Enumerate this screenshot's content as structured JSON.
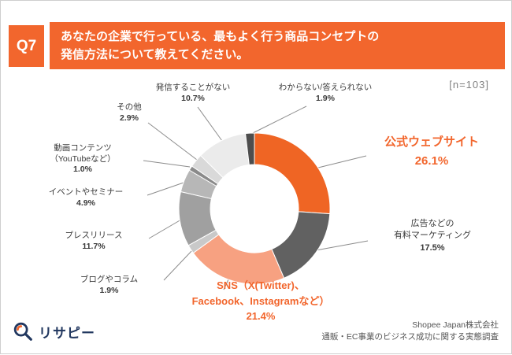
{
  "header": {
    "q_label": "Q7",
    "title_line1": "あなたの企業で行っている、最もよく行う商品コンセプトの",
    "title_line2": "発信方法について教えてください。"
  },
  "sample_label": "[n=103]",
  "chart_data": {
    "type": "pie",
    "subtype": "donut",
    "unit": "%",
    "n": 103,
    "start": "top",
    "direction": "clockwise",
    "categories": [
      "公式ウェブサイト",
      "広告などの有料マーケティング",
      "SNS（X(Twitter)、Facebook、Instagramなど）",
      "ブログやコラム",
      "プレスリリース",
      "イベントやセミナー",
      "動画コンテンツ（YouTubeなど）",
      "その他",
      "発信することがない",
      "わからない/答えられない"
    ],
    "values": [
      26.1,
      17.5,
      21.4,
      1.9,
      11.7,
      4.9,
      1.0,
      2.9,
      10.7,
      1.9
    ],
    "pct_labels": [
      "26.1%",
      "17.5%",
      "21.4%",
      "1.9%",
      "11.7%",
      "4.9%",
      "1.0%",
      "2.9%",
      "10.7%",
      "1.9%"
    ],
    "colors": [
      "#ef6524",
      "#616161",
      "#f7a181",
      "#c9c9c9",
      "#a0a0a0",
      "#b7b7b7",
      "#8a8a8a",
      "#d9d9d9",
      "#ebebeb",
      "#4d4d4d"
    ],
    "highlight_color": "#f2662d",
    "callouts": [
      {
        "lines": [
          "公式ウェブサイト",
          "26.1%"
        ]
      },
      {
        "lines": [
          "広告などの",
          "有料マーケティング",
          "17.5%"
        ]
      },
      {
        "lines": [
          "SNS（X(Twitter)、",
          "Facebook、Instagramなど）",
          "21.4%"
        ]
      },
      {
        "lines": [
          "ブログやコラム",
          "1.9%"
        ]
      },
      {
        "lines": [
          "プレスリリース",
          "11.7%"
        ]
      },
      {
        "lines": [
          "イベントやセミナー",
          "4.9%"
        ]
      },
      {
        "lines": [
          "動画コンテンツ",
          "（YouTubeなど）",
          "1.0%"
        ]
      },
      {
        "lines": [
          "その他",
          "2.9%"
        ]
      },
      {
        "lines": [
          "発信することがない",
          "10.7%"
        ]
      },
      {
        "lines": [
          "わからない/答えられない",
          "1.9%"
        ]
      }
    ]
  },
  "footer": {
    "logo_text": "リサピー",
    "credit_line1": "Shopee Japan株式会社",
    "credit_line2": "通販・EC事業のビジネス成功に関する実態調査"
  }
}
